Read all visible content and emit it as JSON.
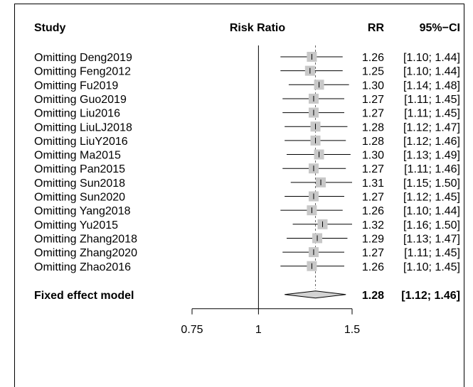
{
  "chart_data": {
    "type": "forest",
    "headers": {
      "study": "Study",
      "effect": "Risk Ratio",
      "rr": "RR",
      "ci": "95%−CI"
    },
    "studies": [
      {
        "label": "Omitting Deng2019",
        "rr": 1.26,
        "lower": 1.1,
        "upper": 1.44,
        "rr_text": "1.26",
        "ci_text": "[1.10; 1.44]",
        "weight": 1.0
      },
      {
        "label": "Omitting Feng2012",
        "rr": 1.25,
        "lower": 1.1,
        "upper": 1.44,
        "rr_text": "1.25",
        "ci_text": "[1.10; 1.44]",
        "weight": 1.0
      },
      {
        "label": "Omitting Fu2019",
        "rr": 1.3,
        "lower": 1.14,
        "upper": 1.48,
        "rr_text": "1.30",
        "ci_text": "[1.14; 1.48]",
        "weight": 1.0
      },
      {
        "label": "Omitting Guo2019",
        "rr": 1.27,
        "lower": 1.11,
        "upper": 1.45,
        "rr_text": "1.27",
        "ci_text": "[1.11; 1.45]",
        "weight": 1.0
      },
      {
        "label": "Omitting Liu2016",
        "rr": 1.27,
        "lower": 1.11,
        "upper": 1.45,
        "rr_text": "1.27",
        "ci_text": "[1.11; 1.45]",
        "weight": 1.0
      },
      {
        "label": "Omitting LiuLJ2018",
        "rr": 1.28,
        "lower": 1.12,
        "upper": 1.47,
        "rr_text": "1.28",
        "ci_text": "[1.12; 1.47]",
        "weight": 1.0
      },
      {
        "label": "Omitting LiuY2016",
        "rr": 1.28,
        "lower": 1.12,
        "upper": 1.46,
        "rr_text": "1.28",
        "ci_text": "[1.12; 1.46]",
        "weight": 1.0
      },
      {
        "label": "Omitting Ma2015",
        "rr": 1.3,
        "lower": 1.13,
        "upper": 1.49,
        "rr_text": "1.30",
        "ci_text": "[1.13; 1.49]",
        "weight": 1.0
      },
      {
        "label": "Omitting Pan2015",
        "rr": 1.27,
        "lower": 1.11,
        "upper": 1.46,
        "rr_text": "1.27",
        "ci_text": "[1.11; 1.46]",
        "weight": 1.0
      },
      {
        "label": "Omitting Sun2018",
        "rr": 1.31,
        "lower": 1.15,
        "upper": 1.5,
        "rr_text": "1.31",
        "ci_text": "[1.15; 1.50]",
        "weight": 1.0
      },
      {
        "label": "Omitting Sun2020",
        "rr": 1.27,
        "lower": 1.12,
        "upper": 1.45,
        "rr_text": "1.27",
        "ci_text": "[1.12; 1.45]",
        "weight": 1.0
      },
      {
        "label": "Omitting Yang2018",
        "rr": 1.26,
        "lower": 1.1,
        "upper": 1.44,
        "rr_text": "1.26",
        "ci_text": "[1.10; 1.44]",
        "weight": 1.0
      },
      {
        "label": "Omitting Yu2015",
        "rr": 1.32,
        "lower": 1.16,
        "upper": 1.5,
        "rr_text": "1.32",
        "ci_text": "[1.16; 1.50]",
        "weight": 1.0
      },
      {
        "label": "Omitting Zhang2018",
        "rr": 1.29,
        "lower": 1.13,
        "upper": 1.47,
        "rr_text": "1.29",
        "ci_text": "[1.13; 1.47]",
        "weight": 1.0
      },
      {
        "label": "Omitting Zhang2020",
        "rr": 1.27,
        "lower": 1.11,
        "upper": 1.45,
        "rr_text": "1.27",
        "ci_text": "[1.11; 1.45]",
        "weight": 1.0
      },
      {
        "label": "Omitting Zhao2016",
        "rr": 1.26,
        "lower": 1.1,
        "upper": 1.45,
        "rr_text": "1.26",
        "ci_text": "[1.10; 1.45]",
        "weight": 1.0
      }
    ],
    "pooled": {
      "label": "Fixed effect model",
      "rr": 1.28,
      "lower": 1.12,
      "upper": 1.46,
      "rr_text": "1.28",
      "ci_text": "[1.12; 1.46]"
    },
    "x_axis": {
      "scale": "log",
      "ticks": [
        0.75,
        1,
        1.5
      ],
      "tick_labels": [
        "0.75",
        "1",
        "1.5"
      ],
      "xlim": [
        0.75,
        1.5
      ],
      "null_value": 1
    },
    "colors": {
      "box": "#c8c8c8",
      "diamond": "#d3d3d3",
      "line": "#000000",
      "dashed": "#666666"
    }
  }
}
